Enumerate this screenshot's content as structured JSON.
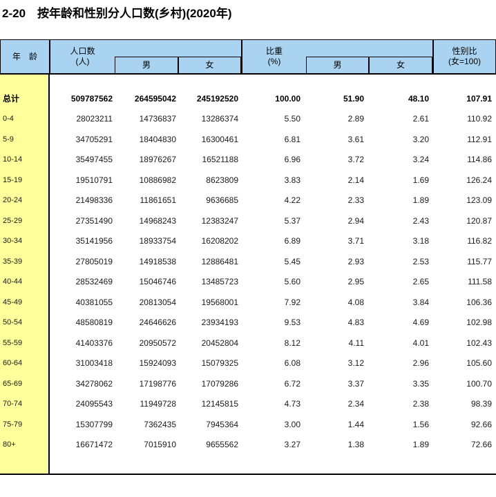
{
  "title": "2-20　按年龄和性别分人口数(乡村)(2020年)",
  "colors": {
    "header_bg": "#A9D3F0",
    "age_column_bg": "#FFFF9C",
    "border": "#000000"
  },
  "table": {
    "header": {
      "age": "年　龄",
      "population_line1": "人口数",
      "population_line2": "(人)",
      "male": "男",
      "female": "女",
      "share_line1": "比重",
      "share_line2": "(%)",
      "ratio_line1": "性别比",
      "ratio_line2": "(女=100)"
    },
    "rows": [
      {
        "age": "总计",
        "pop": "509787562",
        "pop_m": "264595042",
        "pop_f": "245192520",
        "pct": "100.00",
        "pct_m": "51.90",
        "pct_f": "48.10",
        "ratio": "107.91",
        "bold": true
      },
      {
        "age": "0-4",
        "pop": "28023211",
        "pop_m": "14736837",
        "pop_f": "13286374",
        "pct": "5.50",
        "pct_m": "2.89",
        "pct_f": "2.61",
        "ratio": "110.92"
      },
      {
        "age": "5-9",
        "pop": "34705291",
        "pop_m": "18404830",
        "pop_f": "16300461",
        "pct": "6.81",
        "pct_m": "3.61",
        "pct_f": "3.20",
        "ratio": "112.91"
      },
      {
        "age": "10-14",
        "pop": "35497455",
        "pop_m": "18976267",
        "pop_f": "16521188",
        "pct": "6.96",
        "pct_m": "3.72",
        "pct_f": "3.24",
        "ratio": "114.86"
      },
      {
        "age": "15-19",
        "pop": "19510791",
        "pop_m": "10886982",
        "pop_f": "8623809",
        "pct": "3.83",
        "pct_m": "2.14",
        "pct_f": "1.69",
        "ratio": "126.24"
      },
      {
        "age": "20-24",
        "pop": "21498336",
        "pop_m": "11861651",
        "pop_f": "9636685",
        "pct": "4.22",
        "pct_m": "2.33",
        "pct_f": "1.89",
        "ratio": "123.09"
      },
      {
        "age": "25-29",
        "pop": "27351490",
        "pop_m": "14968243",
        "pop_f": "12383247",
        "pct": "5.37",
        "pct_m": "2.94",
        "pct_f": "2.43",
        "ratio": "120.87"
      },
      {
        "age": "30-34",
        "pop": "35141956",
        "pop_m": "18933754",
        "pop_f": "16208202",
        "pct": "6.89",
        "pct_m": "3.71",
        "pct_f": "3.18",
        "ratio": "116.82"
      },
      {
        "age": "35-39",
        "pop": "27805019",
        "pop_m": "14918538",
        "pop_f": "12886481",
        "pct": "5.45",
        "pct_m": "2.93",
        "pct_f": "2.53",
        "ratio": "115.77"
      },
      {
        "age": "40-44",
        "pop": "28532469",
        "pop_m": "15046746",
        "pop_f": "13485723",
        "pct": "5.60",
        "pct_m": "2.95",
        "pct_f": "2.65",
        "ratio": "111.58"
      },
      {
        "age": "45-49",
        "pop": "40381055",
        "pop_m": "20813054",
        "pop_f": "19568001",
        "pct": "7.92",
        "pct_m": "4.08",
        "pct_f": "3.84",
        "ratio": "106.36"
      },
      {
        "age": "50-54",
        "pop": "48580819",
        "pop_m": "24646626",
        "pop_f": "23934193",
        "pct": "9.53",
        "pct_m": "4.83",
        "pct_f": "4.69",
        "ratio": "102.98"
      },
      {
        "age": "55-59",
        "pop": "41403376",
        "pop_m": "20950572",
        "pop_f": "20452804",
        "pct": "8.12",
        "pct_m": "4.11",
        "pct_f": "4.01",
        "ratio": "102.43"
      },
      {
        "age": "60-64",
        "pop": "31003418",
        "pop_m": "15924093",
        "pop_f": "15079325",
        "pct": "6.08",
        "pct_m": "3.12",
        "pct_f": "2.96",
        "ratio": "105.60"
      },
      {
        "age": "65-69",
        "pop": "34278062",
        "pop_m": "17198776",
        "pop_f": "17079286",
        "pct": "6.72",
        "pct_m": "3.37",
        "pct_f": "3.35",
        "ratio": "100.70"
      },
      {
        "age": "70-74",
        "pop": "24095543",
        "pop_m": "11949728",
        "pop_f": "12145815",
        "pct": "4.73",
        "pct_m": "2.34",
        "pct_f": "2.38",
        "ratio": "98.39"
      },
      {
        "age": "75-79",
        "pop": "15307799",
        "pop_m": "7362435",
        "pop_f": "7945364",
        "pct": "3.00",
        "pct_m": "1.44",
        "pct_f": "1.56",
        "ratio": "92.66"
      },
      {
        "age": "80+",
        "pop": "16671472",
        "pop_m": "7015910",
        "pop_f": "9655562",
        "pct": "3.27",
        "pct_m": "1.38",
        "pct_f": "1.89",
        "ratio": "72.66"
      }
    ]
  }
}
